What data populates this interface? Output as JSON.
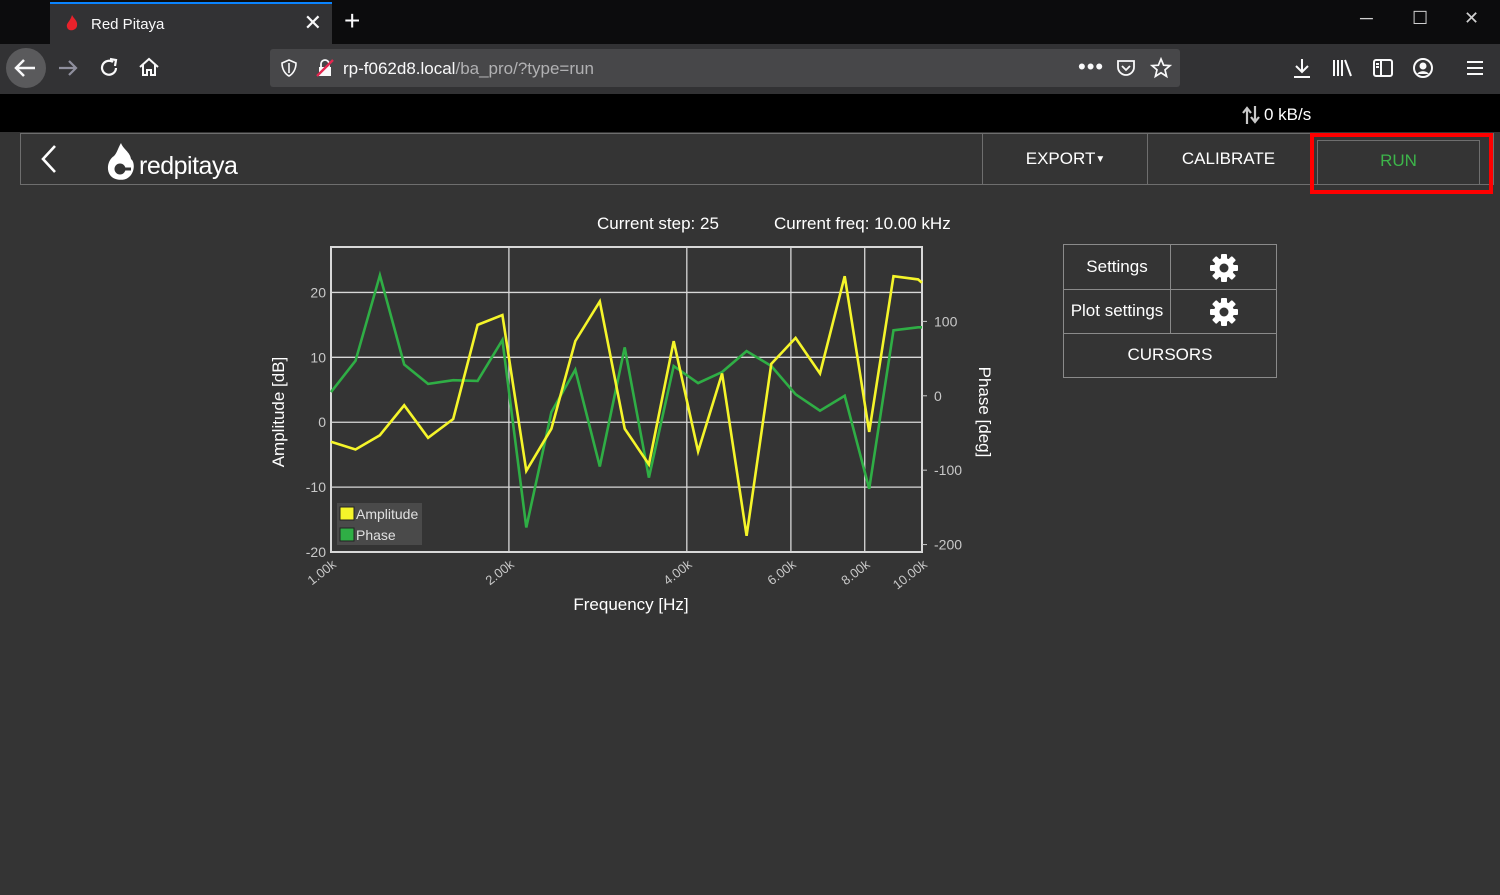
{
  "browser": {
    "tab_title": "Red Pitaya",
    "url_host": "rp-f062d8.local",
    "url_path": "/ba_pro/?type=run",
    "network_rate": "0 kB/s"
  },
  "app": {
    "logo_text": "redpitaya",
    "export_label": "EXPORT",
    "calibrate_label": "CALIBRATE",
    "run_label": "RUN",
    "current_step": "Current step: 25",
    "current_freq": "Current freq: 10.00 kHz",
    "settings_label": "Settings",
    "plot_settings_label": "Plot settings",
    "cursors_label": "CURSORS"
  },
  "colors": {
    "amplitude": "#f5f52a",
    "phase": "#2fae45",
    "run_text": "#3db54a",
    "highlight": "#ff0000"
  },
  "chart_data": {
    "type": "line",
    "xlabel": "Frequency [Hz]",
    "ylabel": "Amplitude [dB]",
    "y2label": "Phase [deg]",
    "xscale": "log",
    "xlim": [
      1000,
      10000
    ],
    "ylim": [
      -20,
      27
    ],
    "y2lim": [
      -210,
      200
    ],
    "x_ticks": [
      1000,
      2000,
      4000,
      6000,
      8000,
      10000
    ],
    "x_tick_labels": [
      "1.00k",
      "2.00k",
      "4.00k",
      "6.00k",
      "8.00k",
      "10.00k"
    ],
    "y_ticks": [
      -20,
      -10,
      0,
      10,
      20
    ],
    "y_tick_labels": [
      "-20",
      "-10",
      "0",
      "10",
      "20"
    ],
    "y2_ticks": [
      -200,
      -100,
      0,
      100
    ],
    "y2_tick_labels": [
      "-200",
      "-100",
      "0",
      "100"
    ],
    "grid": true,
    "legend_position": "bottom-left",
    "x": [
      1000,
      1100,
      1210,
      1330,
      1460,
      1610,
      1770,
      1950,
      2140,
      2360,
      2590,
      2850,
      3140,
      3450,
      3800,
      4180,
      4590,
      5050,
      5560,
      6110,
      6720,
      7400,
      8140,
      8950,
      9850,
      10000
    ],
    "series": [
      {
        "name": "Amplitude",
        "values": [
          -3,
          -4.2,
          -2,
          2.6,
          -2.4,
          0.5,
          15,
          16.5,
          -7.5,
          -1,
          12.5,
          18.6,
          -1,
          -6.5,
          12.5,
          -4.5,
          7.5,
          -17.5,
          9,
          13,
          7.5,
          22.5,
          -1.5,
          22.5,
          22,
          21.5
        ]
      },
      {
        "name": "Phase",
        "values": [
          5,
          47,
          162,
          42,
          16,
          21,
          20,
          75,
          -177,
          -22,
          35,
          -95,
          65,
          -110,
          40,
          17,
          32,
          60,
          40,
          2,
          -20,
          0,
          -125,
          88,
          92,
          92
        ]
      }
    ]
  }
}
